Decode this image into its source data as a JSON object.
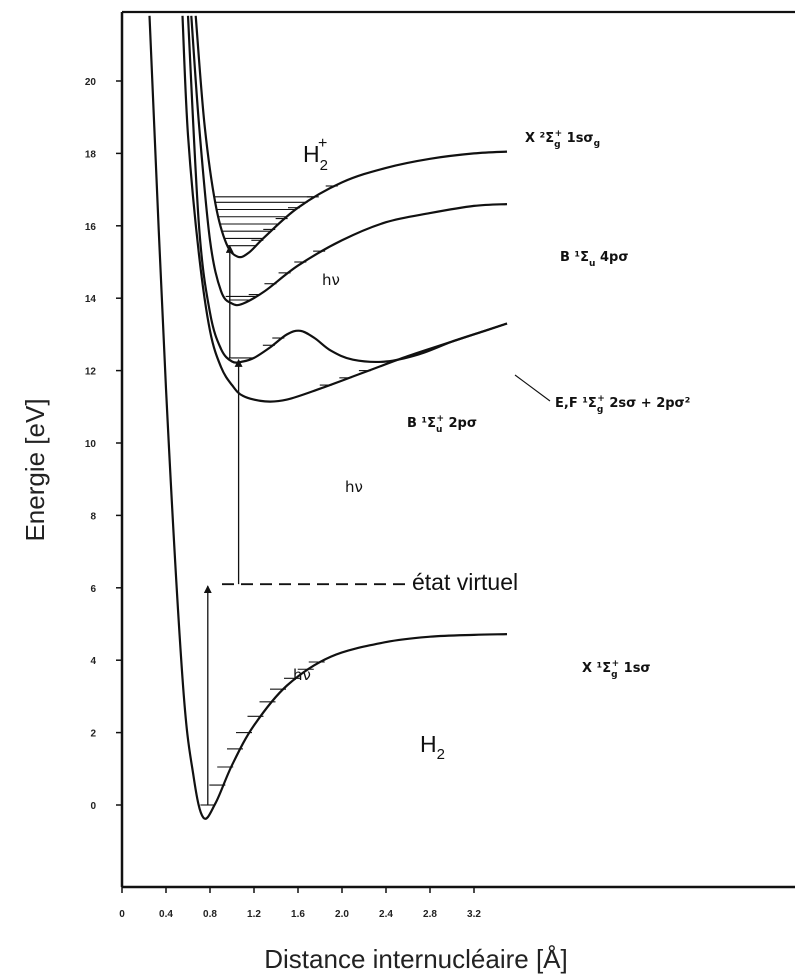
{
  "chart_data": {
    "type": "line",
    "xlabel": "Distance internucléaire [Å]",
    "ylabel": "Energie  [eV]",
    "x_ticks": [
      "0",
      "0.4",
      "0.8",
      "1.2",
      "1.6",
      "2.0",
      "2.4",
      "2.8",
      "3.2"
    ],
    "y_ticks": [
      "0",
      "2",
      "4",
      "6",
      "8",
      "10",
      "12",
      "14",
      "16",
      "18",
      "20"
    ],
    "xlim": [
      0,
      3.5
    ],
    "ylim": [
      -2.3,
      21.8
    ],
    "grid": false,
    "series": [
      {
        "name": "X ¹Σg⁺ 1sσ",
        "x": [
          0.25,
          0.4,
          0.55,
          0.65,
          0.74,
          0.85,
          1.0,
          1.2,
          1.5,
          1.9,
          2.4,
          2.8,
          3.2,
          3.5
        ],
        "y": [
          21.8,
          11.5,
          3.5,
          0.8,
          -0.35,
          0.05,
          1.1,
          2.2,
          3.3,
          4.1,
          4.5,
          4.65,
          4.7,
          4.72
        ]
      },
      {
        "name": "B ¹Σu⁺ 2pσ",
        "x": [
          0.55,
          0.6,
          0.7,
          0.8,
          0.9,
          1.0,
          1.1,
          1.3,
          1.5,
          1.8,
          2.2,
          2.6,
          3.0,
          3.5
        ],
        "y": [
          21.8,
          18.5,
          15.2,
          13.1,
          12.1,
          11.6,
          11.3,
          11.15,
          11.2,
          11.5,
          11.95,
          12.4,
          12.8,
          13.3
        ]
      },
      {
        "name": "E,F ¹Σg⁺ 2sσ + 2pσ²",
        "x": [
          0.6,
          0.7,
          0.8,
          0.9,
          1.0,
          1.1,
          1.2,
          1.35,
          1.5,
          1.62,
          1.75,
          1.9,
          2.1,
          2.4,
          2.7,
          3.0,
          3.3,
          3.5
        ],
        "y": [
          21.8,
          16.0,
          13.6,
          12.6,
          12.25,
          12.25,
          12.35,
          12.65,
          13.0,
          13.1,
          12.9,
          12.55,
          12.3,
          12.25,
          12.45,
          12.8,
          13.1,
          13.3
        ]
      },
      {
        "name": "B ¹Σu 4pσ",
        "x": [
          0.63,
          0.7,
          0.8,
          0.9,
          1.0,
          1.1,
          1.3,
          1.6,
          2.0,
          2.4,
          2.8,
          3.2,
          3.5
        ],
        "y": [
          21.8,
          18.8,
          15.6,
          14.2,
          13.85,
          13.85,
          14.2,
          14.9,
          15.6,
          16.1,
          16.35,
          16.55,
          16.6
        ]
      },
      {
        "name": "X ²Σg⁺ 1sσg",
        "x": [
          0.67,
          0.75,
          0.85,
          0.95,
          1.05,
          1.15,
          1.3,
          1.6,
          2.0,
          2.4,
          2.8,
          3.2,
          3.5
        ],
        "y": [
          21.8,
          18.8,
          16.6,
          15.5,
          15.15,
          15.25,
          15.7,
          16.5,
          17.2,
          17.6,
          17.85,
          18.0,
          18.05
        ]
      }
    ],
    "vibrational_levels_H2": [
      0.0,
      0.55,
      1.05,
      1.55,
      2.0,
      2.45,
      2.85,
      3.2,
      3.5,
      3.75,
      3.95
    ],
    "vibrational_levels_H2plus": [
      15.45,
      15.65,
      15.85,
      16.05,
      16.25,
      16.45,
      16.65,
      16.8
    ],
    "virtual_state_energy": 6.1,
    "transitions": [
      {
        "label": "hν",
        "x": 0.78,
        "from": 0.0,
        "to": 6.1
      },
      {
        "label": "hν",
        "x": 1.06,
        "from": 6.1,
        "to": 12.35
      },
      {
        "label": "hν",
        "x": 0.98,
        "from": 12.35,
        "to": 15.5
      }
    ]
  },
  "annotations": {
    "molecule_ion_main": "H",
    "molecule_ion_sub": "2",
    "molecule_ion_sup": "+",
    "molecule_neutral_main": "H",
    "molecule_neutral_sub": "2",
    "ion_state_label": "X  ²Σ",
    "ion_state_sub": "g",
    "ion_state_sup": "+",
    "ion_state_orbital": "  1sσ",
    "ion_state_orbital_sub": "g",
    "b4p_label": "B  ¹Σ",
    "b4p_sub": "u",
    "b4p_orbital": "  4pσ",
    "ef_label": "E,F  ¹Σ",
    "ef_sub": "g",
    "ef_sup": "+",
    "ef_orbital": "  2sσ + 2pσ²",
    "b2p_label": "B  ¹Σ",
    "b2p_sub": "u",
    "b2p_sup": "+",
    "b2p_orbital": "  2pσ",
    "ground_label": "X  ¹Σ",
    "ground_sub": "g",
    "ground_sup": "+",
    "ground_orbital": "  1sσ",
    "hv": "hν",
    "virtual_state": "état virtuel"
  }
}
